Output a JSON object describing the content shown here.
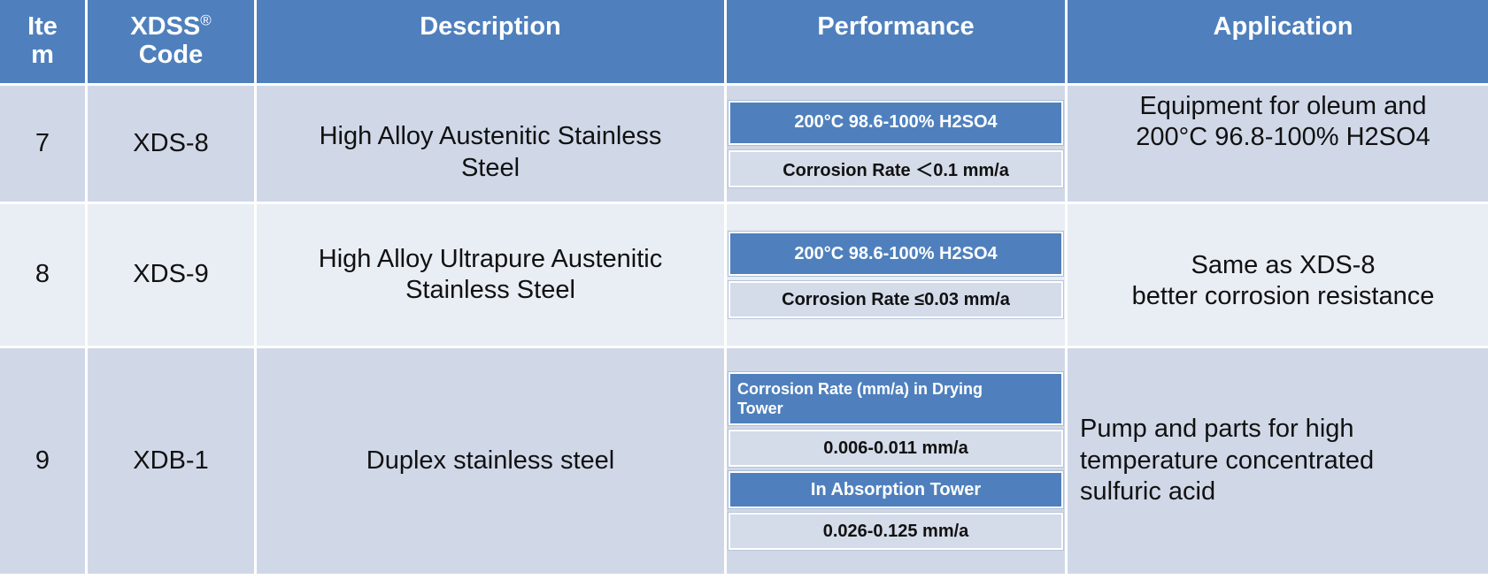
{
  "header": {
    "item": "Ite\nm",
    "code": "XDSS",
    "code_mark": "®",
    "code_suffix": "Code",
    "description": "Description",
    "performance": "Performance",
    "application": "Application"
  },
  "rows": [
    {
      "item": "7",
      "code": "XDS-8",
      "description": "High Alloy Austenitic Stainless\nSteel",
      "performance": [
        {
          "label": "200°C 98.6-100% H2SO4"
        },
        {
          "value": "Corrosion Rate ＜0.1 mm/a"
        }
      ],
      "application": "Equipment for oleum  and\n200°C 96.8-100% H2SO4"
    },
    {
      "item": "8",
      "code": "XDS-9",
      "description": "High Alloy Ultrapure Austenitic\nStainless Steel",
      "performance": [
        {
          "label": "200°C 98.6-100% H2SO4"
        },
        {
          "value": "Corrosion Rate ≤0.03 mm/a"
        }
      ],
      "application": "Same as XDS-8\nbetter corrosion resistance"
    },
    {
      "item": "9",
      "code": "XDB-1",
      "description": "Duplex stainless steel",
      "performance": [
        {
          "label": "Corrosion Rate (mm/a) in Drying\nTower"
        },
        {
          "value": "0.006-0.011 mm/a"
        },
        {
          "label": "In Absorption Tower"
        },
        {
          "value": "0.026-0.125 mm/a"
        }
      ],
      "application": "Pump and parts for high\ntemperature concentrated\nsulfuric acid"
    }
  ],
  "colors": {
    "header_bg": "#4f80bd",
    "row_dark": "#d0d8e8",
    "row_light": "#e9edf4"
  }
}
